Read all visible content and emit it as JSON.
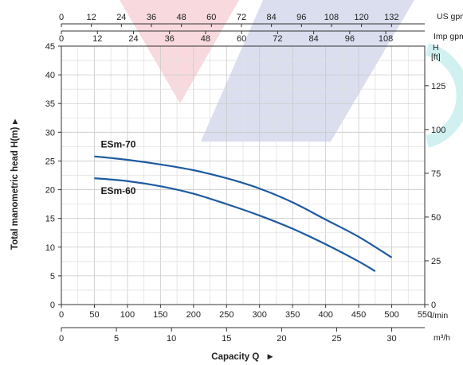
{
  "chart_data": {
    "type": "line",
    "xlabel": "Capacity Q",
    "ylabel": "Total manometric head H(m)",
    "xlim": [
      0,
      550
    ],
    "ylim": [
      0,
      45
    ],
    "grid": true,
    "x_ticks": [
      0,
      50,
      100,
      150,
      200,
      250,
      300,
      350,
      400,
      450,
      500,
      550
    ],
    "y_ticks": [
      0,
      5,
      10,
      15,
      20,
      25,
      30,
      35,
      40,
      45
    ],
    "x_unit": "l/min",
    "y_unit": "H [ft]",
    "series": [
      {
        "name": "ESm-70",
        "x": [
          50,
          100,
          150,
          200,
          250,
          300,
          350,
          400,
          450,
          500
        ],
        "values": [
          25.8,
          25.2,
          24.4,
          23.4,
          22.0,
          20.2,
          17.8,
          14.8,
          11.8,
          8.2
        ],
        "color": "#1e5aa0"
      },
      {
        "name": "ESm-60",
        "x": [
          50,
          100,
          150,
          200,
          250,
          300,
          350,
          400,
          450,
          475
        ],
        "values": [
          22.0,
          21.5,
          20.6,
          19.3,
          17.5,
          15.5,
          13.2,
          10.5,
          7.5,
          5.8
        ],
        "color": "#1e5aa0"
      }
    ],
    "secondary_axes": {
      "us_gpm": {
        "label": "US gpm",
        "ticks": [
          "0",
          "12",
          "24",
          "36",
          "48",
          "60",
          "72",
          "84",
          "96",
          "108",
          "120",
          "132"
        ]
      },
      "imp_gpm": {
        "label": "Imp gpm",
        "ticks": [
          "0",
          "12",
          "24",
          "36",
          "48",
          "60",
          "72",
          "84",
          "96",
          "108"
        ]
      },
      "m3h": {
        "label": "m³/h",
        "ticks": [
          "0",
          "5",
          "10",
          "15",
          "20",
          "25",
          "30"
        ]
      },
      "ft": {
        "label": "H [ft]",
        "ticks": [
          "0",
          "25",
          "50",
          "75",
          "100",
          "125"
        ]
      }
    }
  }
}
